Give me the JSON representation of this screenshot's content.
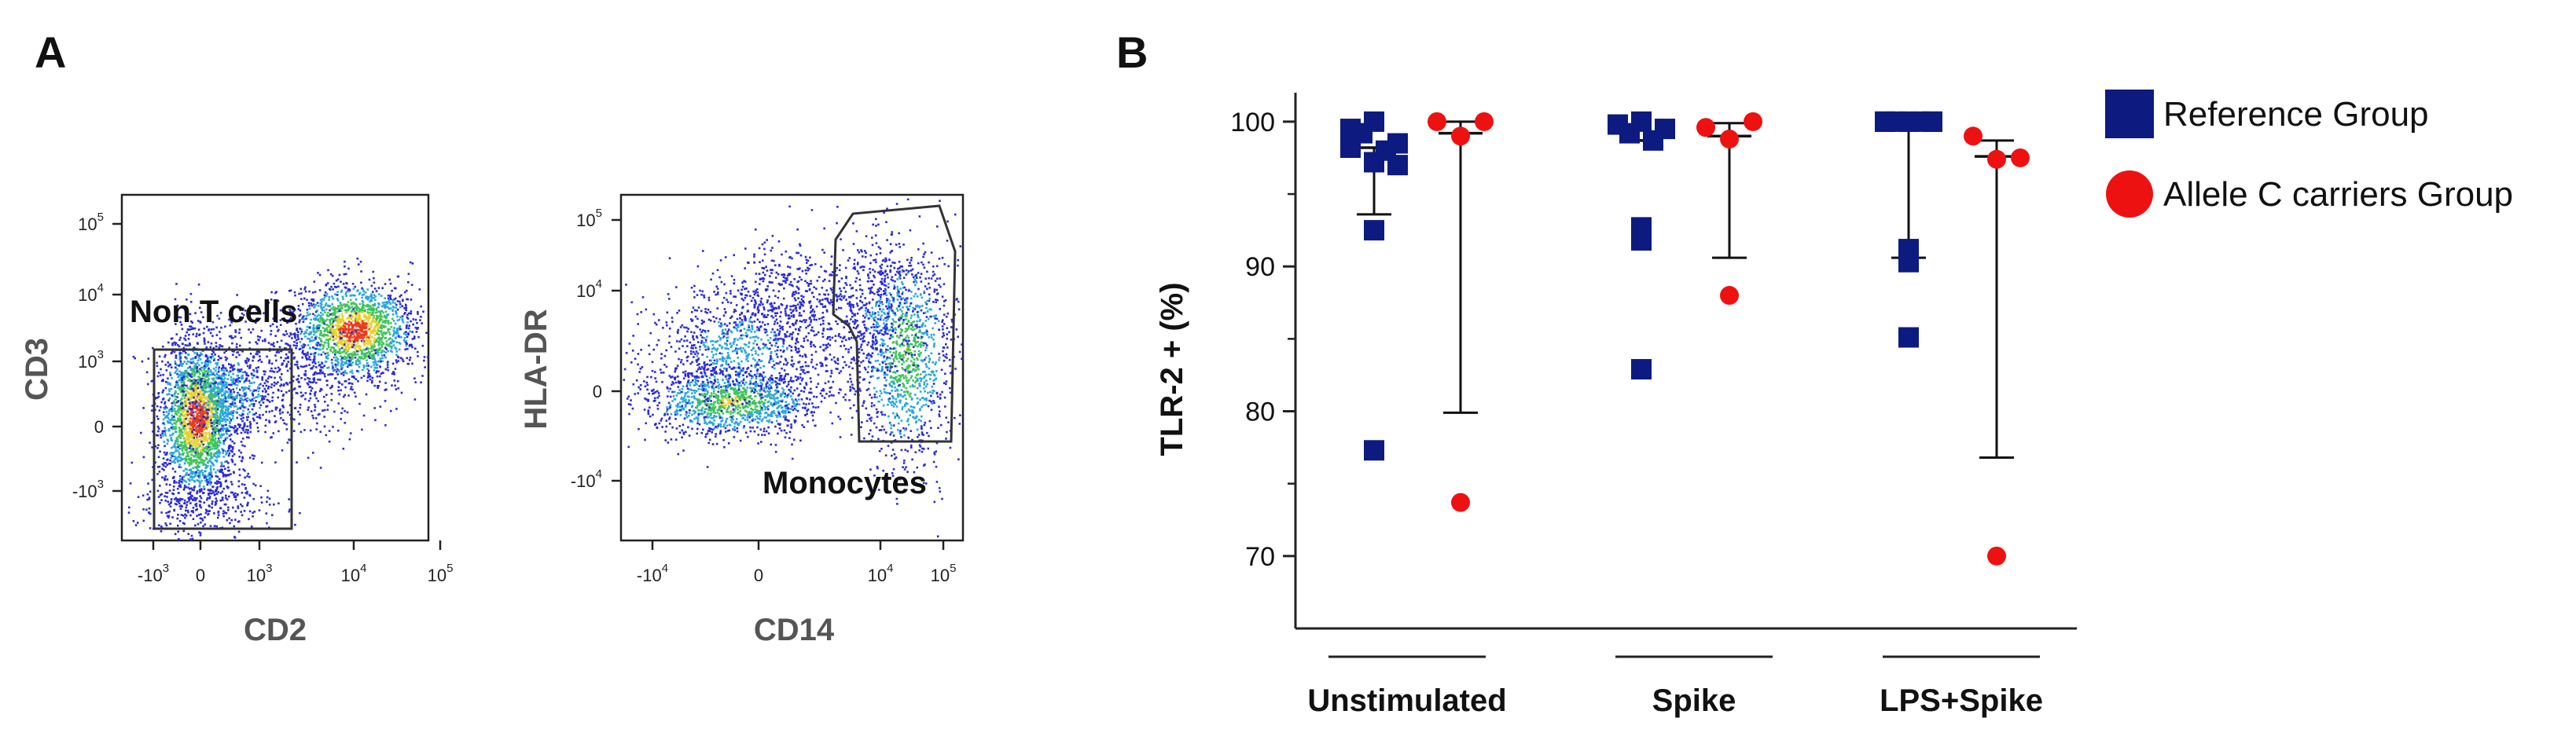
{
  "panel_a_label": "A",
  "panel_b_label": "B",
  "flow": {
    "cd3_plot": {
      "ylabel": "CD3",
      "xlabel": "CD2",
      "gate_label": "Non T cells",
      "x_ticks": [
        {
          "base": "-10",
          "exp": "3"
        },
        {
          "base": "0",
          "exp": ""
        },
        {
          "base": "10",
          "exp": "3"
        },
        {
          "base": "10",
          "exp": "4"
        },
        {
          "base": "10",
          "exp": "5"
        }
      ],
      "y_ticks": [
        {
          "base": "10",
          "exp": "5"
        },
        {
          "base": "10",
          "exp": "4"
        },
        {
          "base": "10",
          "exp": "3"
        },
        {
          "base": "0",
          "exp": ""
        },
        {
          "base": "-10",
          "exp": "3"
        }
      ]
    },
    "hla_plot": {
      "ylabel": "HLA-DR",
      "xlabel": "CD14",
      "gate_label": "Monocytes",
      "x_ticks": [
        {
          "base": "-10",
          "exp": "4"
        },
        {
          "base": "0",
          "exp": ""
        },
        {
          "base": "10",
          "exp": "4"
        },
        {
          "base": "10",
          "exp": "5"
        }
      ],
      "y_ticks": [
        {
          "base": "10",
          "exp": "5"
        },
        {
          "base": "10",
          "exp": "4"
        },
        {
          "base": "0",
          "exp": ""
        },
        {
          "base": "-10",
          "exp": "4"
        }
      ]
    }
  },
  "colors": {
    "reference": "#0d1a80",
    "allele": "#ee1111",
    "axis": "#222222",
    "gate": "#333333"
  },
  "chart_data": {
    "type": "scatter",
    "title": "",
    "xlabel": "",
    "ylabel": "TLR-2 + (%)",
    "ylim": [
      65,
      102
    ],
    "y_ticks": [
      70,
      80,
      90,
      100
    ],
    "categories": [
      "Unstimulated",
      "Spike",
      "LPS+Spike"
    ],
    "legend_position": "right",
    "series": [
      {
        "name": "Reference Group",
        "marker": "square",
        "points": [
          [
            99.5,
            100,
            98.5,
            99.2,
            98,
            98.2,
            97,
            97.2,
            92.5,
            77.3
          ],
          [
            99.8,
            100,
            99.5,
            99.2,
            98.7,
            92.7,
            91.8,
            82.9
          ],
          [
            100,
            100,
            100,
            100,
            100,
            100,
            100,
            90.3,
            91.2,
            85.1
          ]
        ],
        "median": [
          98.2,
          98.7,
          100
        ],
        "whisker_low": [
          93.6,
          null,
          90.6
        ]
      },
      {
        "name": "Allele C carriers Group",
        "marker": "circle",
        "points": [
          [
            100,
            100,
            99,
            73.7
          ],
          [
            99.6,
            100,
            98.8,
            88
          ],
          [
            99,
            97.5,
            97.4,
            70
          ]
        ],
        "median": [
          99.2,
          99.0,
          97.6
        ],
        "whisker_low": [
          79.9,
          90.6,
          76.8
        ],
        "whisker_high": [
          100,
          99.9,
          98.7
        ]
      }
    ]
  }
}
